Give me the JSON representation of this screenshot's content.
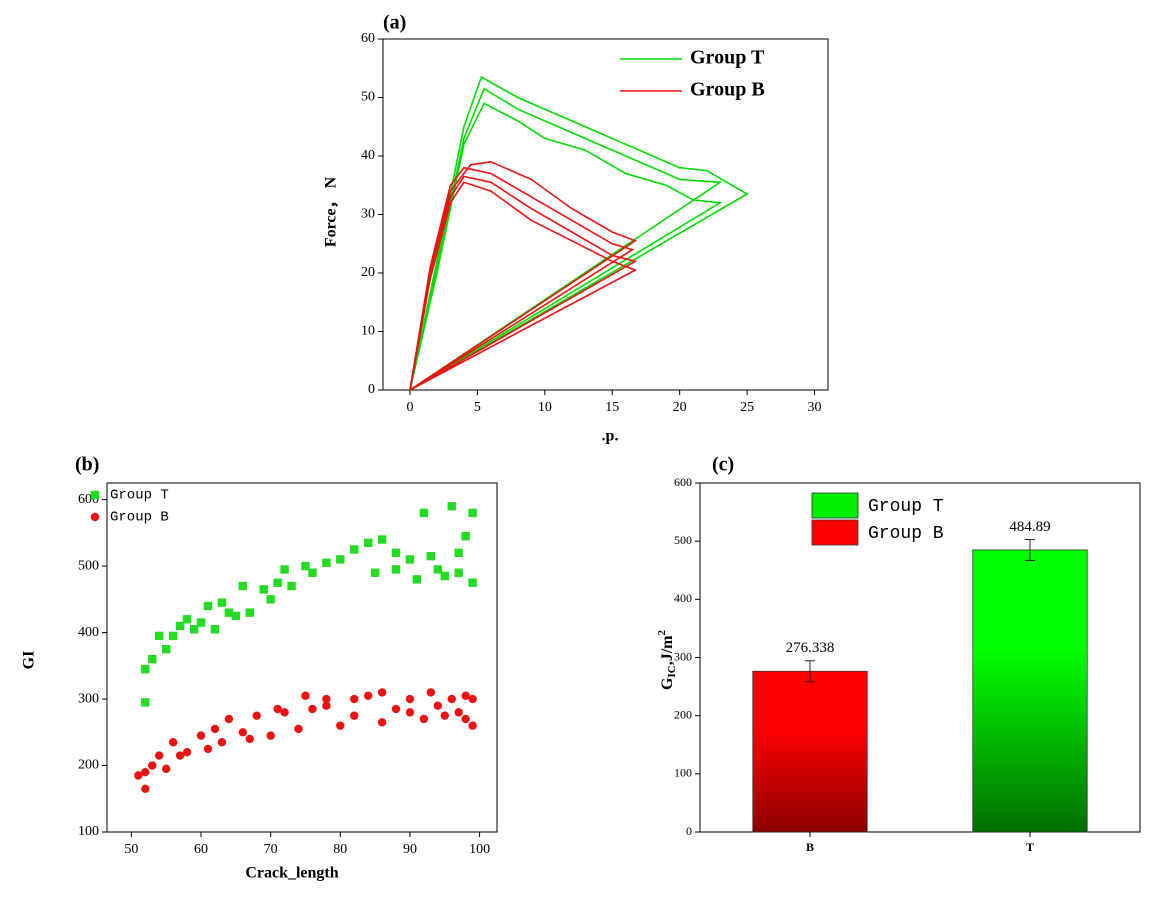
{
  "chart_data": [
    {
      "type": "line",
      "label": "(a)",
      "xlabel": ".p.",
      "ylabel": "Force， N",
      "xlim": [
        -2,
        31
      ],
      "xticks": [
        0,
        5,
        10,
        15,
        20,
        25,
        30
      ],
      "ylim": [
        0,
        60
      ],
      "yticks": [
        0,
        10,
        20,
        30,
        40,
        50,
        60
      ],
      "legend": "top-right",
      "series": [
        {
          "name": "Group T",
          "color": "#00dd00",
          "x": [
            0,
            2,
            4,
            5.3,
            8,
            12,
            16,
            20,
            22,
            25,
            0
          ],
          "values": [
            0,
            22,
            45,
            53.5,
            50,
            46,
            42,
            38,
            37.5,
            33.5,
            0
          ]
        },
        {
          "color": "#00dd00",
          "x": [
            0,
            2,
            4,
            5.5,
            8,
            12,
            16,
            20,
            23,
            0
          ],
          "values": [
            0,
            21,
            43,
            51.5,
            48,
            44,
            40,
            36,
            35.5,
            0
          ]
        },
        {
          "color": "#00dd00",
          "x": [
            0,
            2,
            4,
            5.5,
            8,
            10,
            13,
            16,
            19,
            21,
            23,
            0
          ],
          "values": [
            0,
            20,
            42,
            49,
            46,
            43,
            41,
            37,
            35,
            32.5,
            32,
            0
          ]
        },
        {
          "name": "Group B",
          "color": "#ee1111",
          "x": [
            0,
            1.5,
            3,
            4.5,
            6,
            9,
            12,
            15,
            16.7,
            0
          ],
          "values": [
            0,
            20,
            34,
            38.5,
            39,
            36,
            31,
            27,
            25.5,
            0
          ]
        },
        {
          "color": "#ee1111",
          "x": [
            0,
            1.5,
            3,
            4,
            6,
            9,
            12,
            15,
            16.5,
            0
          ],
          "values": [
            0,
            21,
            35,
            38,
            37,
            33,
            29,
            25,
            24,
            0
          ]
        },
        {
          "color": "#ee1111",
          "x": [
            0,
            1.5,
            3,
            4,
            6,
            9,
            12,
            15,
            16.7,
            0
          ],
          "values": [
            0,
            20,
            33,
            36.5,
            35.5,
            31,
            27,
            23,
            22,
            0
          ]
        },
        {
          "color": "#ee1111",
          "x": [
            0,
            1.5,
            3,
            4,
            6,
            9,
            12,
            15,
            16.7,
            0
          ],
          "values": [
            0,
            19,
            32,
            35.5,
            34,
            29,
            25.5,
            22,
            20.5,
            0
          ]
        }
      ]
    },
    {
      "type": "scatter",
      "label": "(b)",
      "xlabel": "Crack_length",
      "ylabel": "GI",
      "xlim": [
        46.5,
        102.5
      ],
      "xticks": [
        50,
        60,
        70,
        80,
        90,
        100
      ],
      "ylim": [
        100,
        625
      ],
      "yticks": [
        100,
        200,
        300,
        400,
        500,
        600
      ],
      "legend": "top-left",
      "series": [
        {
          "name": "Group T",
          "color": "#22dd22",
          "marker": "square",
          "x": [
            52,
            52,
            53,
            54,
            55,
            56,
            57,
            58,
            59,
            60,
            61,
            62,
            63,
            64,
            65,
            66,
            67,
            69,
            70,
            71,
            72,
            73,
            75,
            76,
            78,
            80,
            82,
            84,
            86,
            88,
            90,
            92,
            93,
            95,
            96,
            97,
            98,
            99,
            99,
            97,
            94,
            91,
            88,
            85
          ],
          "values": [
            295,
            345,
            360,
            395,
            375,
            395,
            410,
            420,
            405,
            415,
            440,
            405,
            445,
            430,
            425,
            470,
            430,
            465,
            450,
            475,
            495,
            470,
            500,
            490,
            505,
            510,
            525,
            535,
            540,
            520,
            510,
            580,
            515,
            485,
            590,
            520,
            545,
            580,
            475,
            490,
            495,
            480,
            495,
            490
          ]
        },
        {
          "name": "Group B",
          "color": "#ee1111",
          "marker": "circle",
          "x": [
            51,
            52,
            52,
            53,
            54,
            55,
            56,
            57,
            58,
            60,
            61,
            62,
            63,
            64,
            66,
            67,
            68,
            70,
            71,
            72,
            74,
            75,
            76,
            78,
            80,
            82,
            84,
            86,
            88,
            90,
            92,
            93,
            95,
            96,
            97,
            98,
            99,
            99,
            98,
            94,
            90,
            86,
            82,
            78
          ],
          "values": [
            185,
            165,
            190,
            200,
            215,
            195,
            235,
            215,
            220,
            245,
            225,
            255,
            235,
            270,
            250,
            240,
            275,
            245,
            285,
            280,
            255,
            305,
            285,
            300,
            260,
            300,
            305,
            310,
            285,
            300,
            270,
            310,
            275,
            300,
            280,
            305,
            300,
            260,
            270,
            290,
            280,
            265,
            275,
            290
          ]
        }
      ]
    },
    {
      "type": "bar",
      "label": "(c)",
      "ylabel": {
        "main": "G",
        "sub": "IC",
        "mid": ",J/m",
        "sup": "2"
      },
      "categories": [
        "B",
        "T"
      ],
      "values": [
        276.338,
        484.89
      ],
      "errors": [
        18,
        18
      ],
      "colors": [
        "#ff0000",
        "#00ff00"
      ],
      "gradient_to": [
        "#8b0000",
        "#007000"
      ],
      "ylim": [
        0,
        600
      ],
      "yticks": [
        0,
        100,
        200,
        300,
        400,
        500,
        600
      ],
      "legend": [
        {
          "label": "Group T",
          "color": "#00ee00"
        },
        {
          "label": "Group B",
          "color": "#ff0000"
        }
      ]
    }
  ]
}
